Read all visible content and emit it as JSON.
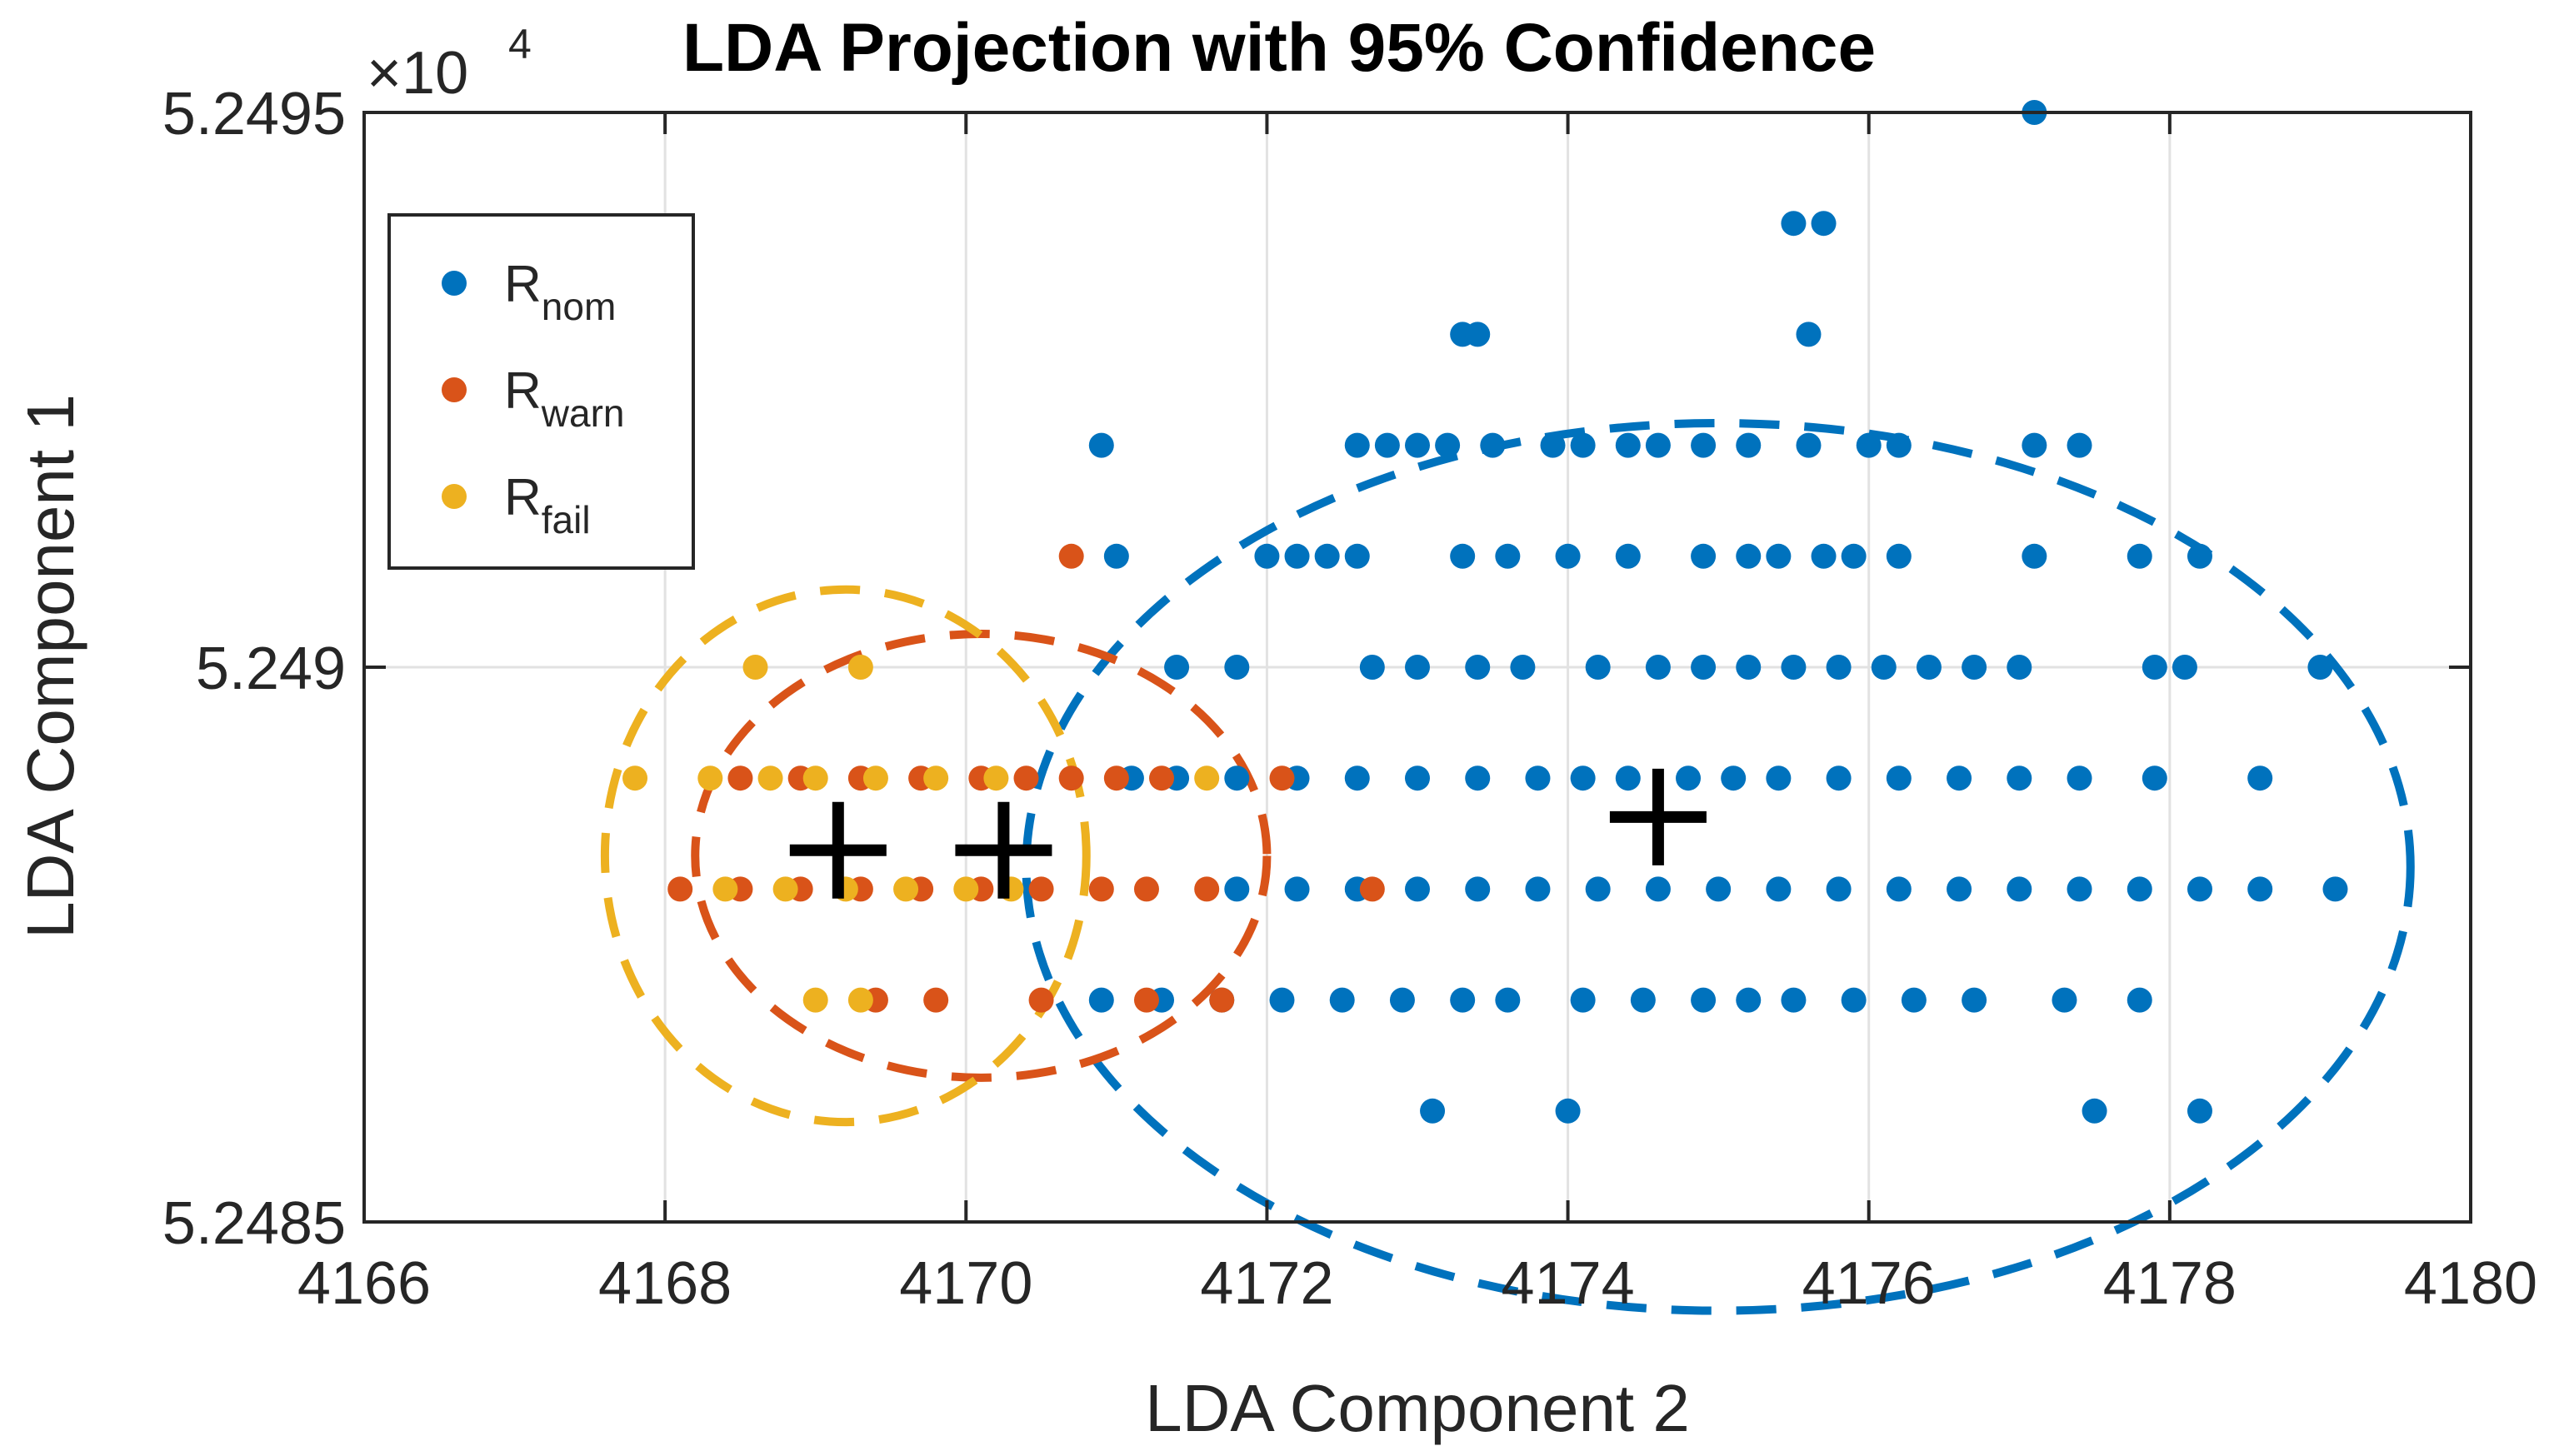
{
  "chart_data": {
    "type": "scatter",
    "title": "LDA Projection with 95% Confidence",
    "xlabel": "LDA Component 2",
    "ylabel": "LDA Component 1",
    "xlim": [
      4166,
      4180
    ],
    "ylim": [
      52485,
      52495
    ],
    "grid": true,
    "legend_position": "top-left",
    "x_ticks": [
      4166,
      4168,
      4170,
      4172,
      4174,
      4176,
      4178,
      4180
    ],
    "x_tick_labels": [
      "4166",
      "4168",
      "4170",
      "4172",
      "4174",
      "4176",
      "4178",
      "4180"
    ],
    "y_ticks": [
      52485,
      52490,
      52495
    ],
    "y_tick_labels": [
      "5.2485",
      "5.249",
      "5.2495"
    ],
    "y_exponent_label": {
      "base": "×10",
      "power": "4"
    },
    "series": [
      {
        "name": "R_nom",
        "label_base": "R",
        "label_sub": "nom",
        "color": "#0072BD",
        "rows": [
          {
            "y": 52495,
            "x": [
              4177.1
            ]
          },
          {
            "y": 52494,
            "x": [
              4175.5,
              4175.7
            ]
          },
          {
            "y": 52493,
            "x": [
              4173.3,
              4173.4,
              4175.6
            ]
          },
          {
            "y": 52492,
            "x": [
              4170.9,
              4172.6,
              4172.8,
              4173.0,
              4173.2,
              4173.5,
              4173.9,
              4174.1,
              4174.4,
              4174.6,
              4174.9,
              4175.2,
              4175.6,
              4176.0,
              4176.2,
              4177.1,
              4177.4
            ]
          },
          {
            "y": 52491,
            "x": [
              4171.0,
              4172.0,
              4172.2,
              4172.4,
              4172.6,
              4173.3,
              4173.6,
              4174.0,
              4174.4,
              4174.9,
              4175.2,
              4175.4,
              4175.7,
              4175.9,
              4176.2,
              4177.1,
              4177.8,
              4178.2
            ]
          },
          {
            "y": 52490,
            "x": [
              4171.4,
              4171.8,
              4172.7,
              4173.0,
              4173.4,
              4173.7,
              4174.2,
              4174.6,
              4174.9,
              4175.2,
              4175.5,
              4175.8,
              4176.1,
              4176.4,
              4176.7,
              4177.0,
              4177.9,
              4178.1,
              4179.0
            ]
          },
          {
            "y": 52489,
            "x": [
              4171.1,
              4171.4,
              4171.8,
              4172.2,
              4172.6,
              4173.0,
              4173.4,
              4173.8,
              4174.1,
              4174.4,
              4174.8,
              4175.1,
              4175.4,
              4175.8,
              4176.2,
              4176.6,
              4177.0,
              4177.4,
              4177.9,
              4178.6
            ]
          },
          {
            "y": 52488,
            "x": [
              4171.8,
              4172.2,
              4172.6,
              4173.0,
              4173.4,
              4173.8,
              4174.2,
              4174.6,
              4175.0,
              4175.4,
              4175.8,
              4176.2,
              4176.6,
              4177.0,
              4177.4,
              4177.8,
              4178.2,
              4178.6,
              4179.1
            ]
          },
          {
            "y": 52487,
            "x": [
              4170.9,
              4171.3,
              4171.7,
              4172.1,
              4172.5,
              4172.9,
              4173.3,
              4173.6,
              4174.1,
              4174.5,
              4174.9,
              4175.2,
              4175.5,
              4175.9,
              4176.3,
              4176.7,
              4177.3,
              4177.8
            ]
          },
          {
            "y": 52486,
            "x": [
              4173.1,
              4174.0,
              4177.5,
              4178.2
            ]
          }
        ]
      },
      {
        "name": "R_warn",
        "label_base": "R",
        "label_sub": "warn",
        "color": "#D95319",
        "rows": [
          {
            "y": 52491,
            "x": [
              4170.7
            ]
          },
          {
            "y": 52489,
            "x": [
              4168.5,
              4168.9,
              4169.3,
              4169.7,
              4170.1,
              4170.4,
              4170.7,
              4171.0,
              4171.3,
              4172.1
            ]
          },
          {
            "y": 52488,
            "x": [
              4168.1,
              4168.5,
              4168.9,
              4169.3,
              4169.7,
              4170.1,
              4170.5,
              4170.9,
              4171.2,
              4171.6,
              4172.7
            ]
          },
          {
            "y": 52487,
            "x": [
              4169.4,
              4169.8,
              4170.5,
              4171.2,
              4171.7
            ]
          }
        ]
      },
      {
        "name": "R_fail",
        "label_base": "R",
        "label_sub": "fail",
        "color": "#EDB120",
        "rows": [
          {
            "y": 52490,
            "x": [
              4168.6,
              4169.3
            ]
          },
          {
            "y": 52489,
            "x": [
              4167.8,
              4168.3,
              4168.7,
              4169.0,
              4169.4,
              4169.8,
              4170.2,
              4171.6
            ]
          },
          {
            "y": 52488,
            "x": [
              4168.4,
              4168.8,
              4169.2,
              4169.6,
              4170.0,
              4170.3
            ]
          },
          {
            "y": 52487,
            "x": [
              4169.0,
              4169.3
            ]
          }
        ]
      }
    ],
    "ellipses": [
      {
        "series": "R_nom",
        "color": "#0072BD",
        "cx": 4175.0,
        "cy": 52488.2,
        "rx": 4.6,
        "ry": 4.0
      },
      {
        "series": "R_warn",
        "color": "#D95319",
        "cx": 4170.1,
        "cy": 52488.3,
        "rx": 1.9,
        "ry": 2.0
      },
      {
        "series": "R_fail",
        "color": "#EDB120",
        "cx": 4169.2,
        "cy": 52488.3,
        "rx": 1.6,
        "ry": 2.4
      }
    ],
    "centroids": [
      {
        "series": "R_fail",
        "x": 4169.15,
        "y": 52488.35
      },
      {
        "series": "R_warn",
        "x": 4170.25,
        "y": 52488.35
      },
      {
        "series": "R_nom",
        "x": 4174.6,
        "y": 52488.65
      }
    ]
  }
}
